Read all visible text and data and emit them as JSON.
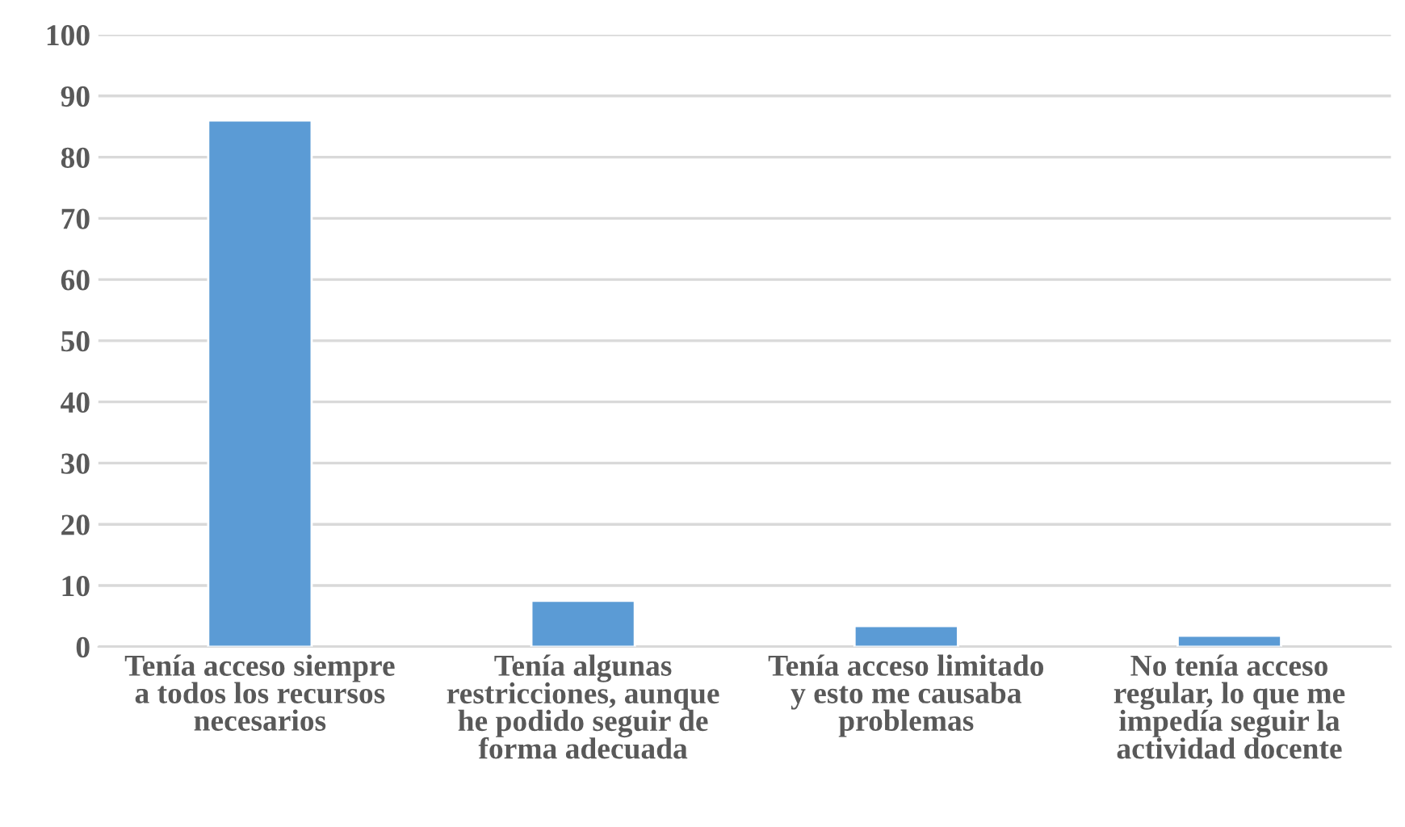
{
  "chart_data": {
    "type": "bar",
    "categories": [
      "Tenía acceso siempre\na todos los recursos\nnecesarios",
      "Tenía algunas\nrestricciones, aunque\nhe podido seguir de\nforma adecuada",
      "Tenía acceso limitado\ny esto me causaba\nproblemas",
      "No tenía acceso\nregular, lo que me\nimpedía seguir la\nactividad docente"
    ],
    "values": [
      86,
      7.5,
      3.4,
      1.8
    ],
    "color": "#5b9bd5",
    "ylim": [
      0,
      100
    ],
    "yticks": [
      0,
      10,
      20,
      30,
      40,
      50,
      60,
      70,
      80,
      90,
      100
    ],
    "grid": "y"
  }
}
